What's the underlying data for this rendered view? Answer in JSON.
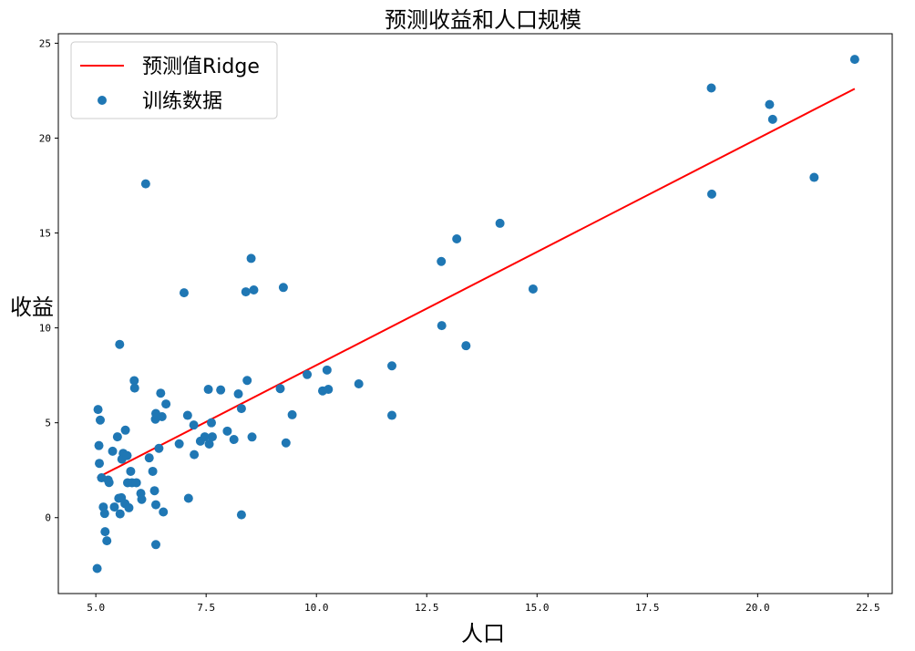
{
  "chart_data": {
    "type": "scatter",
    "title": "预测收益和人口规模",
    "xlabel": "人口",
    "ylabel": "收益",
    "xlim": [
      4.15,
      23.05
    ],
    "ylim": [
      -4.0,
      25.5
    ],
    "xticks": [
      5.0,
      7.5,
      10.0,
      12.5,
      15.0,
      17.5,
      20.0,
      22.5
    ],
    "xtick_labels": [
      "5.0",
      "7.5",
      "10.0",
      "12.5",
      "15.0",
      "17.5",
      "20.0",
      "22.5"
    ],
    "yticks": [
      0,
      5,
      10,
      15,
      20,
      25
    ],
    "ytick_labels": [
      "0",
      "5",
      "10",
      "15",
      "20",
      "25"
    ],
    "grid": false,
    "legend_position": "top-left",
    "colors": {
      "line": "#ff0000",
      "points": "#1f77b4"
    },
    "series": [
      {
        "name": "预测值Ridge",
        "kind": "line",
        "x": [
          5.03,
          22.2
        ],
        "y": [
          2.1,
          22.6
        ]
      },
      {
        "name": "训练数据",
        "kind": "scatter",
        "points": [
          [
            5.03,
            -2.68
          ],
          [
            5.05,
            5.7
          ],
          [
            5.07,
            3.8
          ],
          [
            5.08,
            2.86
          ],
          [
            5.1,
            5.14
          ],
          [
            5.13,
            2.1
          ],
          [
            5.17,
            0.56
          ],
          [
            5.2,
            0.22
          ],
          [
            5.21,
            -0.74
          ],
          [
            5.25,
            -1.22
          ],
          [
            5.28,
            1.98
          ],
          [
            5.3,
            1.85
          ],
          [
            5.38,
            3.5
          ],
          [
            5.42,
            0.56
          ],
          [
            5.49,
            4.26
          ],
          [
            5.52,
            1.02
          ],
          [
            5.54,
            9.13
          ],
          [
            5.55,
            0.2
          ],
          [
            5.58,
            1.05
          ],
          [
            5.59,
            3.08
          ],
          [
            5.62,
            3.39
          ],
          [
            5.66,
            0.74
          ],
          [
            5.67,
            4.61
          ],
          [
            5.71,
            3.27
          ],
          [
            5.72,
            1.84
          ],
          [
            5.75,
            0.52
          ],
          [
            5.79,
            2.44
          ],
          [
            5.82,
            1.84
          ],
          [
            5.87,
            7.22
          ],
          [
            5.88,
            6.83
          ],
          [
            5.92,
            1.84
          ],
          [
            6.02,
            1.28
          ],
          [
            6.04,
            0.96
          ],
          [
            6.13,
            17.59
          ],
          [
            6.21,
            3.15
          ],
          [
            6.29,
            2.44
          ],
          [
            6.33,
            1.42
          ],
          [
            6.35,
            5.19
          ],
          [
            6.36,
            0.68
          ],
          [
            6.36,
            -1.42
          ],
          [
            6.36,
            5.49
          ],
          [
            6.43,
            3.65
          ],
          [
            6.47,
            6.56
          ],
          [
            6.5,
            5.32
          ],
          [
            6.53,
            0.3
          ],
          [
            6.59,
            5.99
          ],
          [
            6.89,
            3.89
          ],
          [
            7.0,
            11.85
          ],
          [
            7.08,
            5.39
          ],
          [
            7.1,
            1.02
          ],
          [
            7.22,
            4.88
          ],
          [
            7.23,
            3.32
          ],
          [
            7.37,
            4.03
          ],
          [
            7.47,
            4.26
          ],
          [
            7.55,
            6.76
          ],
          [
            7.57,
            3.88
          ],
          [
            7.62,
            5.0
          ],
          [
            7.64,
            4.26
          ],
          [
            7.83,
            6.73
          ],
          [
            7.98,
            4.56
          ],
          [
            8.13,
            4.12
          ],
          [
            8.23,
            6.52
          ],
          [
            8.3,
            5.75
          ],
          [
            8.3,
            0.15
          ],
          [
            8.4,
            11.9
          ],
          [
            8.43,
            7.23
          ],
          [
            8.52,
            13.66
          ],
          [
            8.54,
            4.25
          ],
          [
            8.58,
            12.0
          ],
          [
            9.18,
            6.8
          ],
          [
            9.25,
            12.13
          ],
          [
            9.31,
            3.94
          ],
          [
            9.45,
            5.42
          ],
          [
            9.79,
            7.54
          ],
          [
            10.14,
            6.68
          ],
          [
            10.24,
            7.78
          ],
          [
            10.27,
            6.76
          ],
          [
            10.96,
            7.05
          ],
          [
            11.71,
            8.0
          ],
          [
            11.71,
            5.39
          ],
          [
            12.83,
            13.5
          ],
          [
            12.84,
            10.12
          ],
          [
            13.18,
            14.69
          ],
          [
            13.39,
            9.06
          ],
          [
            14.16,
            15.51
          ],
          [
            14.91,
            12.05
          ],
          [
            18.95,
            22.64
          ],
          [
            18.96,
            17.05
          ],
          [
            20.27,
            21.77
          ],
          [
            20.34,
            20.99
          ],
          [
            21.28,
            17.93
          ],
          [
            22.2,
            24.15
          ]
        ]
      }
    ]
  }
}
